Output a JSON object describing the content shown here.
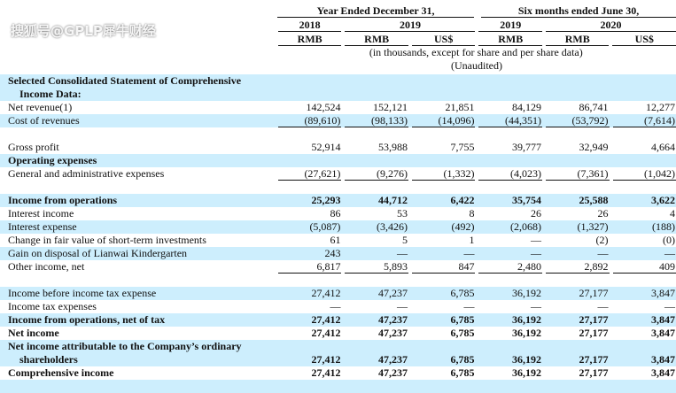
{
  "header": {
    "period1": "Year Ended December 31,",
    "period2": "Six months ended June 30,",
    "years": [
      "2018",
      "2019",
      "2019",
      "2020"
    ],
    "currencies": [
      "RMB",
      "RMB",
      "US$",
      "RMB",
      "RMB",
      "US$"
    ],
    "note": "(in thousands, except for share and per share data)",
    "unaudited": "(Unaudited)"
  },
  "section_title_1": "Selected Consolidated Statement of Comprehensive",
  "section_title_2": "Income Data:",
  "rows": [
    {
      "label": "Net revenue(1)",
      "v": [
        "142,524",
        "152,121",
        "21,851",
        "84,129",
        "86,741",
        "12,277"
      ]
    },
    {
      "label": "Cost of revenues",
      "v": [
        "(89,610)",
        "(98,133)",
        "(14,096)",
        "(44,351)",
        "(53,792)",
        "(7,614)"
      ]
    },
    {
      "label": "Gross profit",
      "v": [
        "52,914",
        "53,988",
        "7,755",
        "39,777",
        "32,949",
        "4,664"
      ]
    },
    {
      "label": "Operating expenses"
    },
    {
      "label": "General and administrative expenses",
      "v": [
        "(27,621)",
        "(9,276)",
        "(1,332)",
        "(4,023)",
        "(7,361)",
        "(1,042)"
      ]
    },
    {
      "label": "Income from operations",
      "v": [
        "25,293",
        "44,712",
        "6,422",
        "35,754",
        "25,588",
        "3,622"
      ]
    },
    {
      "label": "Interest income",
      "v": [
        "86",
        "53",
        "8",
        "26",
        "26",
        "4"
      ]
    },
    {
      "label": "Interest expense",
      "v": [
        "(5,087)",
        "(3,426)",
        "(492)",
        "(2,068)",
        "(1,327)",
        "(188)"
      ]
    },
    {
      "label": "Change in fair value of short-term investments",
      "v": [
        "61",
        "5",
        "1",
        "—",
        "(2)",
        "(0)"
      ]
    },
    {
      "label": "Gain on disposal of Lianwai Kindergarten",
      "v": [
        "243",
        "—",
        "—",
        "—",
        "—",
        "—"
      ]
    },
    {
      "label": "Other income, net",
      "v": [
        "6,817",
        "5,893",
        "847",
        "2,480",
        "2,892",
        "409"
      ]
    },
    {
      "label": "Income before income tax expense",
      "v": [
        "27,412",
        "47,237",
        "6,785",
        "36,192",
        "27,177",
        "3,847"
      ]
    },
    {
      "label": "Income tax expenses",
      "v": [
        "—",
        "—",
        "—",
        "—",
        "—",
        "—"
      ]
    },
    {
      "label": "Income from operations, net of tax",
      "v": [
        "27,412",
        "47,237",
        "6,785",
        "36,192",
        "27,177",
        "3,847"
      ]
    },
    {
      "label": "Net income",
      "v": [
        "27,412",
        "47,237",
        "6,785",
        "36,192",
        "27,177",
        "3,847"
      ]
    },
    {
      "label": "Net income attributable to the Company’s ordinary",
      "label2": "shareholders",
      "v": [
        "27,412",
        "47,237",
        "6,785",
        "36,192",
        "27,177",
        "3,847"
      ]
    },
    {
      "label": "Comprehensive income",
      "v": [
        "27,412",
        "47,237",
        "6,785",
        "36,192",
        "27,177",
        "3,847"
      ]
    }
  ],
  "watermark": "搜狐号@GPLP犀牛财经"
}
